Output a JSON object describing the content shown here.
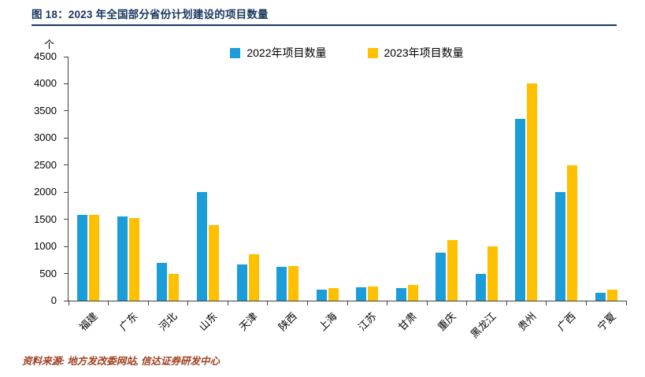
{
  "figure": {
    "title": "图 18：2023 年全国部分省份计划建设的项目数量"
  },
  "source": {
    "text": "资料来源: 地方发改委网站, 信达证券研发中心"
  },
  "chart_data": {
    "type": "bar",
    "title": "2023 年全国部分省份计划建设的项目数量",
    "unit": "个",
    "xlabel": "",
    "ylabel": "个",
    "grid": false,
    "legend_position": "top",
    "categories": [
      "福建",
      "广东",
      "河北",
      "山东",
      "天津",
      "陕西",
      "上海",
      "江苏",
      "甘肃",
      "重庆",
      "黑龙江",
      "贵州",
      "广西",
      "宁夏"
    ],
    "series": [
      {
        "name": "2022年项目数量",
        "color": "#1B9DD9",
        "values": [
          1580,
          1560,
          700,
          2000,
          670,
          620,
          210,
          250,
          230,
          880,
          500,
          3350,
          2000,
          150
        ]
      },
      {
        "name": "2023年项目数量",
        "color": "#FFC000",
        "values": [
          1580,
          1520,
          500,
          1400,
          860,
          640,
          240,
          260,
          290,
          1120,
          1000,
          4000,
          2500,
          200
        ]
      }
    ],
    "ylim": [
      0,
      4500
    ],
    "ytick_step": 500,
    "yticks": [
      0,
      500,
      1000,
      1500,
      2000,
      2500,
      3000,
      3500,
      4000,
      4500
    ]
  },
  "colors": {
    "title": "#17375E",
    "rule": "#17375E",
    "axis": "#404040",
    "source_text": "#A04020",
    "bar_2022": "#1B9DD9",
    "bar_2023": "#FFC000"
  }
}
